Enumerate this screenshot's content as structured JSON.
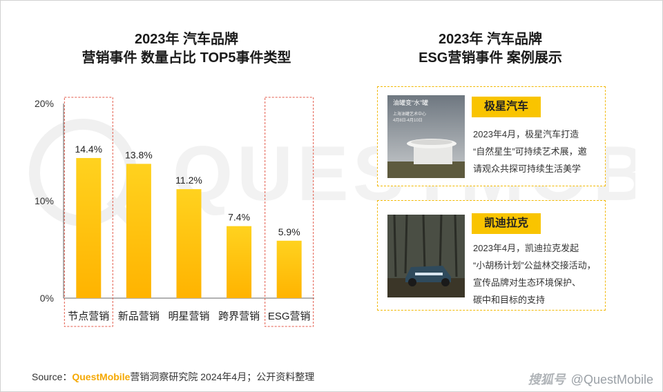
{
  "left_title": {
    "line1": "2023年 汽车品牌",
    "line2": "营销事件 数量占比 TOP5事件类型"
  },
  "right_title": {
    "line1": "2023年 汽车品牌",
    "line2": "ESG营销事件 案例展示"
  },
  "chart_data": {
    "type": "bar",
    "categories": [
      "节点营销",
      "新品营销",
      "明星营销",
      "跨界营销",
      "ESG营销"
    ],
    "values": [
      14.4,
      13.8,
      11.2,
      7.4,
      5.9
    ],
    "value_labels": [
      "14.4%",
      "13.8%",
      "11.2%",
      "7.4%",
      "5.9%"
    ],
    "ylim": [
      0,
      20
    ],
    "yticks": [
      0,
      10,
      20
    ],
    "ytick_labels": [
      "0%",
      "10%",
      "20%"
    ],
    "highlighted_categories": [
      "节点营销",
      "ESG营销"
    ],
    "bar_color_top": "#ffd21f",
    "bar_color_bottom": "#ffb300",
    "highlight_border_color": "#e35a4a"
  },
  "cases": [
    {
      "brand": "极星汽车",
      "lines": [
        "2023年4月，极星汽车打造",
        "“自然星生”可持续艺术展，邀",
        "请观众共探可持续生活美学"
      ],
      "photo_caption": [
        "油罐变“水”罐",
        "上海油罐艺术中心",
        "4月8日-4月10日"
      ]
    },
    {
      "brand": "凯迪拉克",
      "lines": [
        "2023年4月，凯迪拉克发起",
        "“小胡杨计划”公益林交接活动，",
        "宣传品牌对生态环境保护、",
        "碳中和目标的支持"
      ]
    }
  ],
  "source": {
    "prefix": "Source：",
    "brand": "QuestMobile",
    "text": "营销洞察研究院 2024年4月；公开资料整理"
  },
  "footer": {
    "logo": "搜狐号",
    "handle": "@QuestMobile"
  },
  "watermark": "QUESTMOBILE",
  "colors": {
    "accent": "#f9c400",
    "card_border": "#f2b800"
  }
}
